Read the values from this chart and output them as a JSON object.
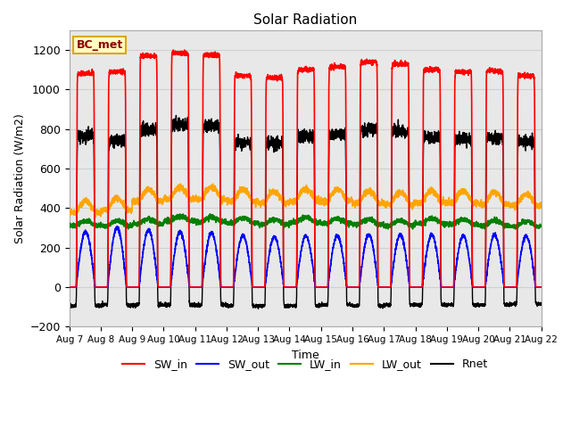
{
  "title": "Solar Radiation",
  "ylabel": "Solar Radiation (W/m2)",
  "xlabel": "Time",
  "ylim": [
    -200,
    1300
  ],
  "yticks": [
    -200,
    0,
    200,
    400,
    600,
    800,
    1000,
    1200
  ],
  "num_days": 15,
  "legend_labels": [
    "SW_in",
    "SW_out",
    "LW_in",
    "LW_out",
    "Rnet"
  ],
  "legend_colors": [
    "red",
    "blue",
    "green",
    "orange",
    "black"
  ],
  "station_label": "BC_met",
  "station_label_color": "#8B0000",
  "station_label_bg": "#FFFFC0",
  "station_label_border": "#DAA520",
  "sw_in_peaks": [
    1080,
    1090,
    1170,
    1185,
    1175,
    1070,
    1060,
    1100,
    1115,
    1140,
    1130,
    1100,
    1090,
    1095,
    1070
  ],
  "sw_out_peaks": [
    280,
    300,
    290,
    280,
    275,
    260,
    255,
    260,
    260,
    265,
    265,
    265,
    260,
    265,
    260
  ],
  "lw_in_base": [
    310,
    310,
    320,
    335,
    330,
    325,
    318,
    328,
    322,
    318,
    312,
    322,
    318,
    312,
    308
  ],
  "lw_out_base": [
    375,
    390,
    435,
    445,
    445,
    435,
    425,
    435,
    435,
    425,
    418,
    428,
    425,
    418,
    412
  ],
  "rnet_night": [
    -95,
    -90,
    -90,
    -90,
    -90,
    -95,
    -95,
    -95,
    -90,
    -95,
    -90,
    -90,
    -90,
    -90,
    -85
  ],
  "xtick_labels": [
    "Aug 7",
    "Aug 8",
    "Aug 9",
    "Aug 10",
    "Aug 11",
    "Aug 12",
    "Aug 13",
    "Aug 14",
    "Aug 15",
    "Aug 16",
    "Aug 17",
    "Aug 18",
    "Aug 19",
    "Aug 20",
    "Aug 21",
    "Aug 22"
  ],
  "grid_color": "#d0d0d0",
  "bg_color": "#e8e8e8"
}
